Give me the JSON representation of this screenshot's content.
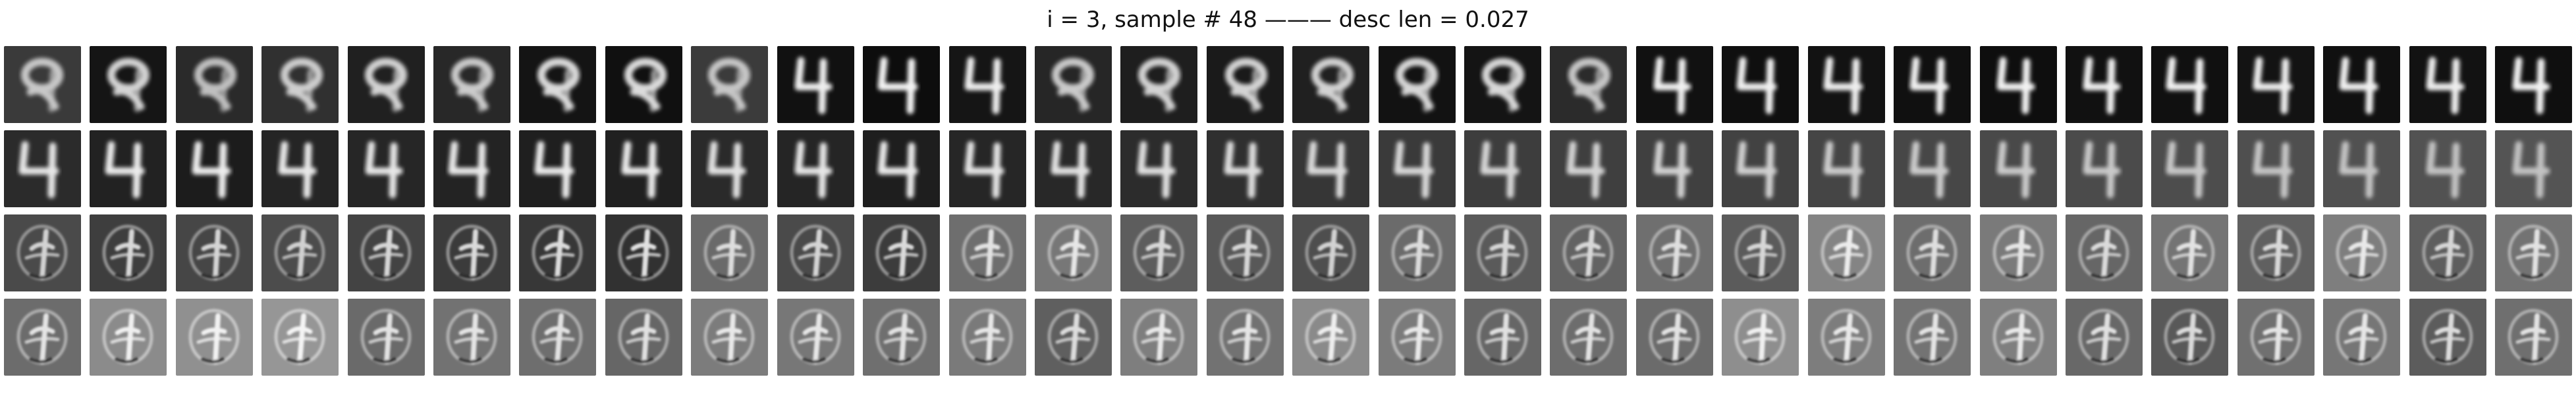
{
  "figure": {
    "title": "i = 3, sample # 48 ——— desc len = 0.027",
    "rows": 4,
    "cols": 30
  },
  "tiles": [
    [
      {
        "digit": "blob",
        "bg": "#3a3a3a",
        "fg": "#d8d8d8"
      },
      {
        "digit": "blob",
        "bg": "#151515",
        "fg": "#e8e8e8"
      },
      {
        "digit": "blob",
        "bg": "#2a2a2a",
        "fg": "#d0d0d0"
      },
      {
        "digit": "blob",
        "bg": "#303030",
        "fg": "#e0e0e0"
      },
      {
        "digit": "blob",
        "bg": "#202020",
        "fg": "#e6e6e6"
      },
      {
        "digit": "blob",
        "bg": "#282828",
        "fg": "#dddddd"
      },
      {
        "digit": "blob",
        "bg": "#141414",
        "fg": "#f0f0f0"
      },
      {
        "digit": "blob",
        "bg": "#101010",
        "fg": "#f2f2f2"
      },
      {
        "digit": "blob",
        "bg": "#3b3b3b",
        "fg": "#d6d6d6"
      },
      {
        "digit": "4",
        "bg": "#111111",
        "fg": "#eeeeee"
      },
      {
        "digit": "4",
        "bg": "#0d0d0d",
        "fg": "#f4f4f4"
      },
      {
        "digit": "4",
        "bg": "#151515",
        "fg": "#eeeeee"
      },
      {
        "digit": "blob",
        "bg": "#262626",
        "fg": "#dcdcdc"
      },
      {
        "digit": "blob",
        "bg": "#1e1e1e",
        "fg": "#e6e6e6"
      },
      {
        "digit": "blob",
        "bg": "#1a1a1a",
        "fg": "#e8e8e8"
      },
      {
        "digit": "blob",
        "bg": "#202020",
        "fg": "#e6e6e6"
      },
      {
        "digit": "blob",
        "bg": "#121212",
        "fg": "#ececec"
      },
      {
        "digit": "blob",
        "bg": "#141414",
        "fg": "#eeeeee"
      },
      {
        "digit": "blob",
        "bg": "#2b2b2b",
        "fg": "#d8d8d8"
      },
      {
        "digit": "4",
        "bg": "#111111",
        "fg": "#f0f0f0"
      },
      {
        "digit": "4",
        "bg": "#0f0f0f",
        "fg": "#f0f0f0"
      },
      {
        "digit": "4",
        "bg": "#121212",
        "fg": "#eeeeee"
      },
      {
        "digit": "4",
        "bg": "#101010",
        "fg": "#f0f0f0"
      },
      {
        "digit": "4",
        "bg": "#0e0e0e",
        "fg": "#f2f2f2"
      },
      {
        "digit": "4",
        "bg": "#111111",
        "fg": "#f0f0f0"
      },
      {
        "digit": "4",
        "bg": "#101010",
        "fg": "#f2f2f2"
      },
      {
        "digit": "4",
        "bg": "#131313",
        "fg": "#eeeeee"
      },
      {
        "digit": "4",
        "bg": "#101010",
        "fg": "#f0f0f0"
      },
      {
        "digit": "4",
        "bg": "#121212",
        "fg": "#eeeeee"
      },
      {
        "digit": "4",
        "bg": "#0f0f0f",
        "fg": "#f2f2f2"
      }
    ],
    [
      {
        "digit": "4",
        "bg": "#2b2b2b",
        "fg": "#e6e6e6"
      },
      {
        "digit": "4",
        "bg": "#222222",
        "fg": "#ebebeb"
      },
      {
        "digit": "4",
        "bg": "#1c1c1c",
        "fg": "#ededed"
      },
      {
        "digit": "4",
        "bg": "#252525",
        "fg": "#e8e8e8"
      },
      {
        "digit": "4",
        "bg": "#262626",
        "fg": "#e6e6e6"
      },
      {
        "digit": "4",
        "bg": "#232323",
        "fg": "#e8e8e8"
      },
      {
        "digit": "4",
        "bg": "#1f1f1f",
        "fg": "#ebebeb"
      },
      {
        "digit": "4",
        "bg": "#202020",
        "fg": "#eaeaea"
      },
      {
        "digit": "4",
        "bg": "#2a2a2a",
        "fg": "#e2e2e2"
      },
      {
        "digit": "4",
        "bg": "#252525",
        "fg": "#e6e6e6"
      },
      {
        "digit": "4",
        "bg": "#1e1e1e",
        "fg": "#eaeaea"
      },
      {
        "digit": "4",
        "bg": "#262626",
        "fg": "#e4e4e4"
      },
      {
        "digit": "4",
        "bg": "#282828",
        "fg": "#e2e2e2"
      },
      {
        "digit": "4",
        "bg": "#2c2c2c",
        "fg": "#e0e0e0"
      },
      {
        "digit": "4",
        "bg": "#2f2f2f",
        "fg": "#dedede"
      },
      {
        "digit": "4",
        "bg": "#363636",
        "fg": "#dadada"
      },
      {
        "digit": "4",
        "bg": "#3a3a3a",
        "fg": "#d8d8d8"
      },
      {
        "digit": "4",
        "bg": "#3d3d3d",
        "fg": "#d6d6d6"
      },
      {
        "digit": "4",
        "bg": "#3f3f3f",
        "fg": "#d4d4d4"
      },
      {
        "digit": "4",
        "bg": "#404040",
        "fg": "#d2d2d2"
      },
      {
        "digit": "4",
        "bg": "#424242",
        "fg": "#d0d0d0"
      },
      {
        "digit": "4",
        "bg": "#454545",
        "fg": "#cecece"
      },
      {
        "digit": "4",
        "bg": "#474747",
        "fg": "#cccccc"
      },
      {
        "digit": "4",
        "bg": "#494949",
        "fg": "#cbcbcb"
      },
      {
        "digit": "4",
        "bg": "#4b4b4b",
        "fg": "#c9c9c9"
      },
      {
        "digit": "4",
        "bg": "#4d4d4d",
        "fg": "#c8c8c8"
      },
      {
        "digit": "4",
        "bg": "#4f4f4f",
        "fg": "#c6c6c6"
      },
      {
        "digit": "4",
        "bg": "#515151",
        "fg": "#c4c4c4"
      },
      {
        "digit": "4",
        "bg": "#525252",
        "fg": "#c3c3c3"
      },
      {
        "digit": "4",
        "bg": "#545454",
        "fg": "#c2c2c2"
      }
    ],
    [
      {
        "digit": "scribble",
        "bg": "#4a4a4a",
        "fg": "#d2d2d2"
      },
      {
        "digit": "scribble",
        "bg": "#3e3e3e",
        "fg": "#d8d8d8"
      },
      {
        "digit": "scribble",
        "bg": "#464646",
        "fg": "#d4d4d4"
      },
      {
        "digit": "scribble",
        "bg": "#4c4c4c",
        "fg": "#d0d0d0"
      },
      {
        "digit": "scribble",
        "bg": "#434343",
        "fg": "#d6d6d6"
      },
      {
        "digit": "scribble",
        "bg": "#3b3b3b",
        "fg": "#dadada"
      },
      {
        "digit": "scribble",
        "bg": "#373737",
        "fg": "#dcdcdc"
      },
      {
        "digit": "scribble",
        "bg": "#313131",
        "fg": "#e0e0e0"
      },
      {
        "digit": "scribble",
        "bg": "#6a6a6a",
        "fg": "#dddddd"
      },
      {
        "digit": "scribble",
        "bg": "#4a4a4a",
        "fg": "#d4d4d4"
      },
      {
        "digit": "scribble",
        "bg": "#3c3c3c",
        "fg": "#dadada"
      },
      {
        "digit": "scribble",
        "bg": "#6e6e6e",
        "fg": "#e2e2e2"
      },
      {
        "digit": "scribble",
        "bg": "#777777",
        "fg": "#e6e6e6"
      },
      {
        "digit": "scribble",
        "bg": "#5d5d5d",
        "fg": "#d8d8d8"
      },
      {
        "digit": "scribble",
        "bg": "#585858",
        "fg": "#d6d6d6"
      },
      {
        "digit": "scribble",
        "bg": "#4e4e4e",
        "fg": "#d2d2d2"
      },
      {
        "digit": "scribble",
        "bg": "#6b6b6b",
        "fg": "#dcdcdc"
      },
      {
        "digit": "scribble",
        "bg": "#5a5a5a",
        "fg": "#d6d6d6"
      },
      {
        "digit": "scribble",
        "bg": "#636363",
        "fg": "#d8d8d8"
      },
      {
        "digit": "scribble",
        "bg": "#6f6f6f",
        "fg": "#dedede"
      },
      {
        "digit": "scribble",
        "bg": "#5b5b5b",
        "fg": "#d6d6d6"
      },
      {
        "digit": "scribble",
        "bg": "#848484",
        "fg": "#ececec"
      },
      {
        "digit": "scribble",
        "bg": "#6d6d6d",
        "fg": "#dedede"
      },
      {
        "digit": "scribble",
        "bg": "#7a7a7a",
        "fg": "#e6e6e6"
      },
      {
        "digit": "scribble",
        "bg": "#666666",
        "fg": "#dadada"
      },
      {
        "digit": "scribble",
        "bg": "#747474",
        "fg": "#e2e2e2"
      },
      {
        "digit": "scribble",
        "bg": "#606060",
        "fg": "#d8d8d8"
      },
      {
        "digit": "scribble",
        "bg": "#7e7e7e",
        "fg": "#e8e8e8"
      },
      {
        "digit": "scribble",
        "bg": "#5e5e5e",
        "fg": "#d6d6d6"
      },
      {
        "digit": "scribble",
        "bg": "#737373",
        "fg": "#e2e2e2"
      }
    ],
    [
      {
        "digit": "scribble",
        "bg": "#6c6c6c",
        "fg": "#e4e4e4"
      },
      {
        "digit": "scribble",
        "bg": "#8b8b8b",
        "fg": "#f0f0f0"
      },
      {
        "digit": "scribble",
        "bg": "#909090",
        "fg": "#f2f2f2"
      },
      {
        "digit": "scribble",
        "bg": "#969696",
        "fg": "#f4f4f4"
      },
      {
        "digit": "scribble",
        "bg": "#6a6a6a",
        "fg": "#e2e2e2"
      },
      {
        "digit": "scribble",
        "bg": "#727272",
        "fg": "#e4e4e4"
      },
      {
        "digit": "scribble",
        "bg": "#6e6e6e",
        "fg": "#e2e2e2"
      },
      {
        "digit": "scribble",
        "bg": "#666666",
        "fg": "#e0e0e0"
      },
      {
        "digit": "scribble",
        "bg": "#7c7c7c",
        "fg": "#e8e8e8"
      },
      {
        "digit": "scribble",
        "bg": "#777777",
        "fg": "#e6e6e6"
      },
      {
        "digit": "scribble",
        "bg": "#6f6f6f",
        "fg": "#e2e2e2"
      },
      {
        "digit": "scribble",
        "bg": "#7a7a7a",
        "fg": "#e6e6e6"
      },
      {
        "digit": "scribble",
        "bg": "#5f5f5f",
        "fg": "#dcdcdc"
      },
      {
        "digit": "scribble",
        "bg": "#7e7e7e",
        "fg": "#e8e8e8"
      },
      {
        "digit": "scribble",
        "bg": "#727272",
        "fg": "#e4e4e4"
      },
      {
        "digit": "scribble",
        "bg": "#8a8a8a",
        "fg": "#eeeeee"
      },
      {
        "digit": "scribble",
        "bg": "#7b7b7b",
        "fg": "#e8e8e8"
      },
      {
        "digit": "scribble",
        "bg": "#666666",
        "fg": "#e0e0e0"
      },
      {
        "digit": "scribble",
        "bg": "#6d6d6d",
        "fg": "#e2e2e2"
      },
      {
        "digit": "scribble",
        "bg": "#6b6b6b",
        "fg": "#e2e2e2"
      },
      {
        "digit": "scribble",
        "bg": "#8e8e8e",
        "fg": "#f0f0f0"
      },
      {
        "digit": "scribble",
        "bg": "#7d7d7d",
        "fg": "#e8e8e8"
      },
      {
        "digit": "scribble",
        "bg": "#737373",
        "fg": "#e4e4e4"
      },
      {
        "digit": "scribble",
        "bg": "#7f7f7f",
        "fg": "#e8e8e8"
      },
      {
        "digit": "scribble",
        "bg": "#686868",
        "fg": "#e0e0e0"
      },
      {
        "digit": "scribble",
        "bg": "#595959",
        "fg": "#dadada"
      },
      {
        "digit": "scribble",
        "bg": "#707070",
        "fg": "#e4e4e4"
      },
      {
        "digit": "scribble",
        "bg": "#767676",
        "fg": "#e6e6e6"
      },
      {
        "digit": "scribble",
        "bg": "#5c5c5c",
        "fg": "#dcdcdc"
      },
      {
        "digit": "scribble",
        "bg": "#6f6f6f",
        "fg": "#e2e2e2"
      }
    ]
  ]
}
